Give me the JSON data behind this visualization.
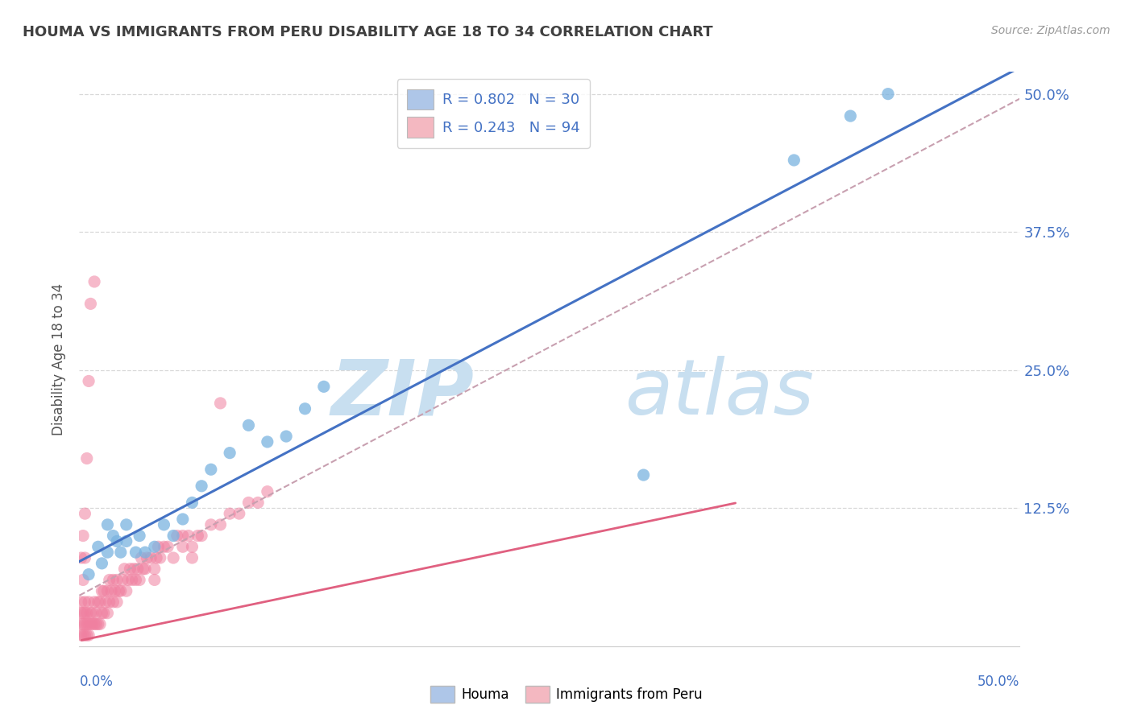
{
  "title": "HOUMA VS IMMIGRANTS FROM PERU DISABILITY AGE 18 TO 34 CORRELATION CHART",
  "source": "Source: ZipAtlas.com",
  "ylabel": "Disability Age 18 to 34",
  "ytick_labels": [
    "12.5%",
    "25.0%",
    "37.5%",
    "50.0%"
  ],
  "ytick_values": [
    0.125,
    0.25,
    0.375,
    0.5
  ],
  "xtick_labels": [
    "0.0%",
    "50.0%"
  ],
  "xtick_values": [
    0.0,
    0.5
  ],
  "xlim": [
    0.0,
    0.5
  ],
  "ylim": [
    0.0,
    0.52
  ],
  "legend_entries": [
    {
      "label": "R = 0.802   N = 30",
      "color": "#aec6e8"
    },
    {
      "label": "R = 0.243   N = 94",
      "color": "#f4b8c1"
    }
  ],
  "houma_color": "#7ab3e0",
  "peru_color": "#f080a0",
  "houma_line_color": "#4472c4",
  "peru_solid_line_color": "#e06080",
  "peru_dashed_line_color": "#d4a0b0",
  "watermark_text": "ZIP",
  "watermark_text2": "atlas",
  "watermark_color": "#c8dff0",
  "legend_label_houma": "Houma",
  "legend_label_peru": "Immigrants from Peru",
  "houma_scatter_x": [
    0.005,
    0.01,
    0.012,
    0.015,
    0.015,
    0.018,
    0.02,
    0.022,
    0.025,
    0.025,
    0.03,
    0.032,
    0.035,
    0.04,
    0.045,
    0.05,
    0.055,
    0.06,
    0.065,
    0.07,
    0.08,
    0.09,
    0.1,
    0.11,
    0.12,
    0.13,
    0.3,
    0.38,
    0.41,
    0.43
  ],
  "houma_scatter_y": [
    0.065,
    0.09,
    0.075,
    0.11,
    0.085,
    0.1,
    0.095,
    0.085,
    0.11,
    0.095,
    0.085,
    0.1,
    0.085,
    0.09,
    0.11,
    0.1,
    0.115,
    0.13,
    0.145,
    0.16,
    0.175,
    0.2,
    0.185,
    0.19,
    0.215,
    0.235,
    0.155,
    0.44,
    0.48,
    0.5
  ],
  "peru_scatter_x": [
    0.001,
    0.001,
    0.001,
    0.002,
    0.002,
    0.002,
    0.003,
    0.003,
    0.003,
    0.003,
    0.004,
    0.004,
    0.004,
    0.005,
    0.005,
    0.005,
    0.006,
    0.006,
    0.007,
    0.007,
    0.008,
    0.008,
    0.009,
    0.009,
    0.01,
    0.01,
    0.011,
    0.011,
    0.012,
    0.012,
    0.013,
    0.013,
    0.014,
    0.015,
    0.015,
    0.016,
    0.016,
    0.017,
    0.018,
    0.018,
    0.019,
    0.02,
    0.02,
    0.021,
    0.022,
    0.023,
    0.024,
    0.025,
    0.026,
    0.027,
    0.028,
    0.029,
    0.03,
    0.031,
    0.032,
    0.033,
    0.034,
    0.035,
    0.036,
    0.038,
    0.04,
    0.041,
    0.042,
    0.043,
    0.045,
    0.047,
    0.05,
    0.052,
    0.055,
    0.058,
    0.06,
    0.063,
    0.065,
    0.07,
    0.075,
    0.08,
    0.085,
    0.09,
    0.095,
    0.1,
    0.001,
    0.001,
    0.002,
    0.002,
    0.003,
    0.003,
    0.004,
    0.005,
    0.006,
    0.008,
    0.04,
    0.055,
    0.06,
    0.075
  ],
  "peru_scatter_y": [
    0.01,
    0.02,
    0.03,
    0.01,
    0.02,
    0.03,
    0.01,
    0.02,
    0.03,
    0.04,
    0.01,
    0.02,
    0.03,
    0.01,
    0.02,
    0.04,
    0.02,
    0.03,
    0.02,
    0.03,
    0.02,
    0.04,
    0.02,
    0.03,
    0.02,
    0.04,
    0.02,
    0.04,
    0.03,
    0.05,
    0.03,
    0.05,
    0.04,
    0.03,
    0.05,
    0.04,
    0.06,
    0.05,
    0.04,
    0.06,
    0.05,
    0.04,
    0.06,
    0.05,
    0.05,
    0.06,
    0.07,
    0.05,
    0.06,
    0.07,
    0.06,
    0.07,
    0.06,
    0.07,
    0.06,
    0.08,
    0.07,
    0.07,
    0.08,
    0.08,
    0.07,
    0.08,
    0.09,
    0.08,
    0.09,
    0.09,
    0.08,
    0.1,
    0.09,
    0.1,
    0.09,
    0.1,
    0.1,
    0.11,
    0.11,
    0.12,
    0.12,
    0.13,
    0.13,
    0.14,
    0.04,
    0.08,
    0.06,
    0.1,
    0.08,
    0.12,
    0.17,
    0.24,
    0.31,
    0.33,
    0.06,
    0.1,
    0.08,
    0.22
  ],
  "background_color": "#ffffff",
  "grid_color": "#d8d8d8",
  "title_color": "#404040",
  "tick_label_color": "#4472c4",
  "ylabel_color": "#555555"
}
